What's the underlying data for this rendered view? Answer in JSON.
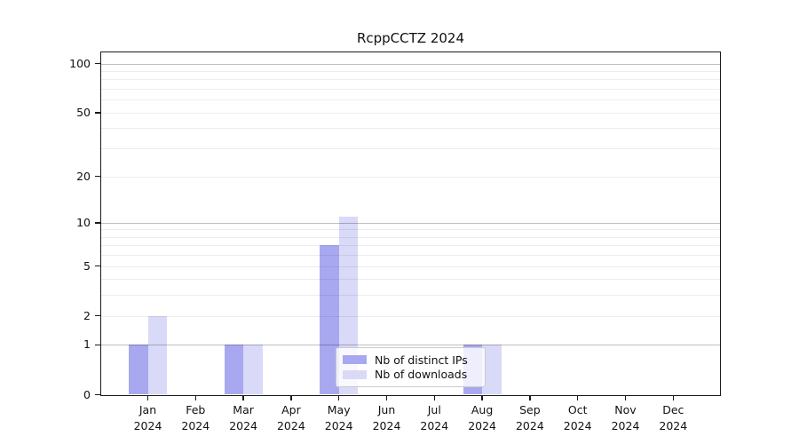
{
  "chart_data": {
    "type": "bar",
    "title": "RcppCCTZ 2024",
    "xlabel": "",
    "ylabel": "",
    "x_tick_months": [
      "Jan",
      "Feb",
      "Mar",
      "Apr",
      "May",
      "Jun",
      "Jul",
      "Aug",
      "Sep",
      "Oct",
      "Nov",
      "Dec"
    ],
    "x_tick_year": "2024",
    "y_ticks": [
      0,
      1,
      2,
      5,
      10,
      20,
      50,
      100
    ],
    "y_minor_gridlines": [
      2,
      3,
      4,
      5,
      6,
      7,
      8,
      9,
      20,
      30,
      40,
      50,
      60,
      70,
      80,
      90
    ],
    "y_major_gridlines": [
      1,
      10,
      100
    ],
    "y_scale": "log1p",
    "ylim": [
      0,
      116
    ],
    "grid": true,
    "series": [
      {
        "name": "Nb of distinct IPs",
        "color": "#a8a8f0",
        "values": [
          1,
          0,
          1,
          0,
          7,
          0,
          0,
          1,
          0,
          0,
          0,
          0
        ]
      },
      {
        "name": "Nb of downloads",
        "color": "#d9d9f8",
        "values": [
          2,
          0,
          1,
          0,
          11,
          0,
          0,
          1,
          0,
          0,
          0,
          0
        ]
      }
    ],
    "legend": {
      "entries": [
        "Nb of distinct IPs",
        "Nb of downloads"
      ],
      "position": "inside-bottom-center"
    }
  }
}
